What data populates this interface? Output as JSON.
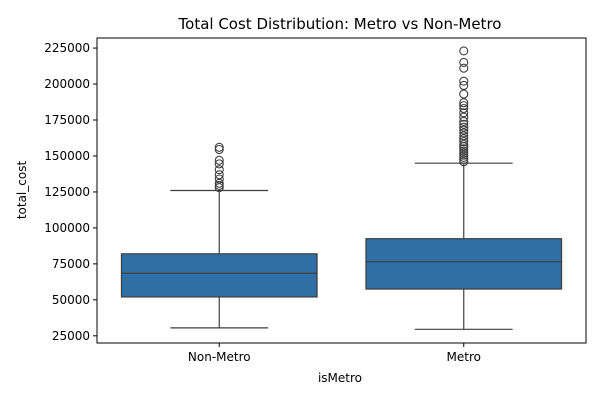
{
  "chart_data": {
    "type": "box",
    "title": "Total Cost Distribution: Metro vs Non-Metro",
    "xlabel": "isMetro",
    "ylabel": "total_cost",
    "categories": [
      "Non-Metro",
      "Metro"
    ],
    "ylim": [
      20000,
      232000
    ],
    "yticks": [
      25000,
      50000,
      75000,
      100000,
      125000,
      150000,
      175000,
      200000,
      225000
    ],
    "ytick_labels": [
      "25000",
      "50000",
      "75000",
      "100000",
      "125000",
      "150000",
      "175000",
      "200000",
      "225000"
    ],
    "grid": false,
    "color": "#2f6fa6",
    "boxes": [
      {
        "category": "Non-Metro",
        "whisker_low": 30500,
        "q1": 52000,
        "median": 68500,
        "q3": 82000,
        "whisker_high": 126000,
        "outliers": [
          128000,
          129500,
          131000,
          134000,
          137000,
          140500,
          144500,
          147000,
          154500,
          156000
        ]
      },
      {
        "category": "Metro",
        "whisker_low": 29500,
        "q1": 57500,
        "median": 76500,
        "q3": 92500,
        "whisker_high": 145000,
        "outliers": [
          146000,
          147500,
          149000,
          150500,
          152000,
          153500,
          155000,
          156500,
          158000,
          160000,
          162000,
          164000,
          166000,
          168000,
          170000,
          172000,
          174000,
          177000,
          180000,
          183000,
          185000,
          187000,
          193000,
          199000,
          202000,
          211000,
          215000,
          223000
        ]
      }
    ]
  }
}
